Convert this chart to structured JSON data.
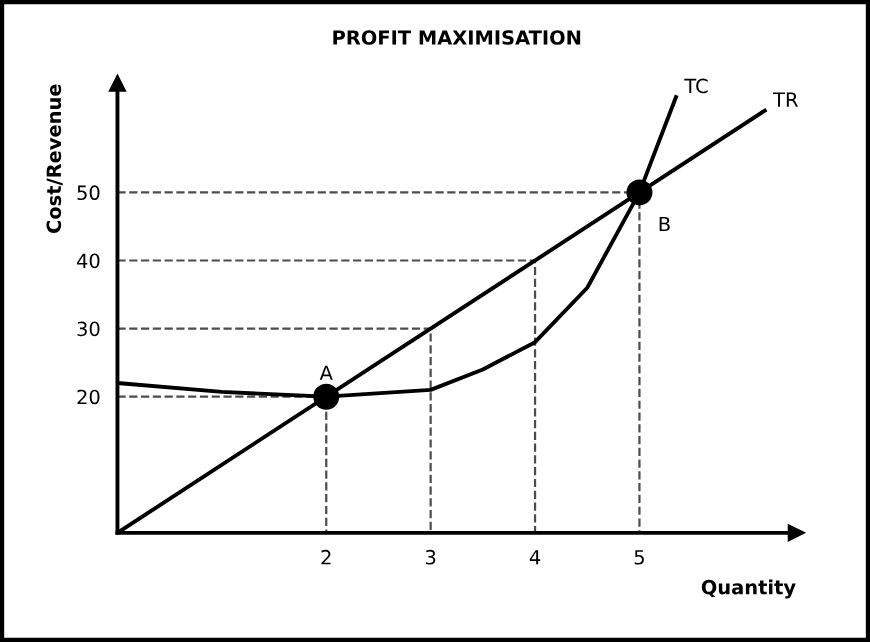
{
  "chart_data": {
    "type": "line",
    "title": "PROFIT MAXIMISATION",
    "xlabel": "Quantity",
    "ylabel": "Cost/Revenue",
    "xlim": [
      0,
      6.5
    ],
    "ylim": [
      0,
      66
    ],
    "xticks": [
      2,
      3,
      4,
      5
    ],
    "yticks": [
      20,
      30,
      40,
      50
    ],
    "grid": false,
    "legend": false,
    "marker": "none",
    "line_style": "solid",
    "series": [
      {
        "name": "TC",
        "color": "#000000",
        "x": [
          0,
          1,
          2,
          3,
          3.5,
          4,
          4.5,
          5,
          5.35
        ],
        "values": [
          22,
          20.7,
          20,
          21,
          24,
          28,
          36,
          50,
          64
        ]
      },
      {
        "name": "TR",
        "color": "#000000",
        "x": [
          0,
          6.2
        ],
        "values": [
          0,
          62
        ]
      },
      {
        "type": "line",
        "line_style": "dashed",
        "color": "#000000",
        "x": [
          0,
          2,
          2
        ],
        "values": [
          20,
          20,
          0
        ]
      },
      {
        "type": "line",
        "line_style": "dashed",
        "color": "#000000",
        "x": [
          0,
          3,
          3
        ],
        "values": [
          30,
          30,
          0
        ]
      },
      {
        "type": "line",
        "line_style": "dashed",
        "color": "#000000",
        "x": [
          0,
          4,
          4
        ],
        "values": [
          40,
          40,
          0
        ]
      },
      {
        "type": "line",
        "line_style": "dashed",
        "color": "#000000",
        "x": [
          0,
          5,
          5
        ],
        "values": [
          50,
          50,
          0
        ]
      },
      {
        "type": "scatter",
        "marker": "circle",
        "color": "#000000",
        "x": [
          2,
          5
        ],
        "values": [
          20,
          50
        ]
      }
    ],
    "annotations": [
      {
        "text": "A",
        "x": 2,
        "y": 20
      },
      {
        "text": "B",
        "x": 5,
        "y": 50
      }
    ]
  }
}
